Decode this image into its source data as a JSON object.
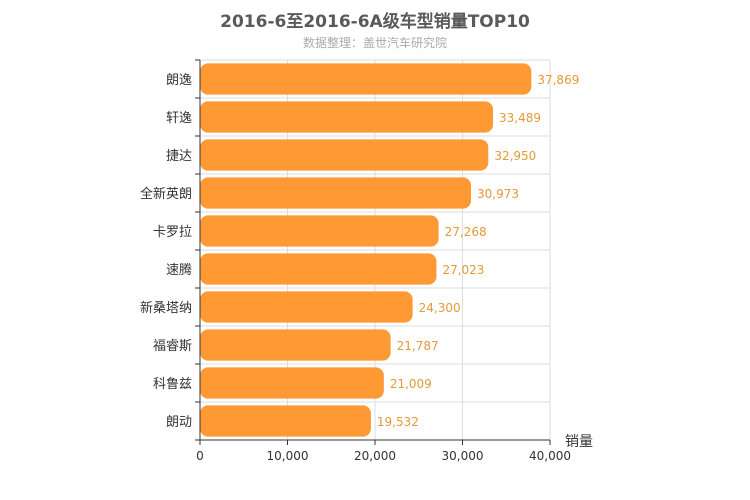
{
  "header": {
    "title": "2016-6至2016-6A级车型销量TOP10",
    "subtitle": "数据整理：盖世汽车研究院"
  },
  "colors": {
    "bar": "#ff9933",
    "value_label": "#e39a3a",
    "grid": "#dddddd",
    "axis": "#333333"
  },
  "chart_data": {
    "type": "bar",
    "orientation": "horizontal",
    "title": "2016-6至2016-6A级车型销量TOP10",
    "subtitle": "数据整理：盖世汽车研究院",
    "categories": [
      "朗逸",
      "轩逸",
      "捷达",
      "全新英朗",
      "卡罗拉",
      "速腾",
      "新桑塔纳",
      "福睿斯",
      "科鲁兹",
      "朗动"
    ],
    "values": [
      37869,
      33489,
      32950,
      30973,
      27268,
      27023,
      24300,
      21787,
      21009,
      19532
    ],
    "value_labels": [
      "37,869",
      "33,489",
      "32,950",
      "30,973",
      "27,268",
      "27,023",
      "24,300",
      "21,787",
      "21,009",
      "19,532"
    ],
    "xlabel": "销量",
    "ylabel": "",
    "xlim": [
      0,
      40000
    ],
    "ticks": [
      0,
      10000,
      20000,
      30000,
      40000
    ],
    "tick_labels": [
      "0",
      "10,000",
      "20,000",
      "30,000",
      "40,000"
    ],
    "grid": true,
    "legend": "none"
  }
}
